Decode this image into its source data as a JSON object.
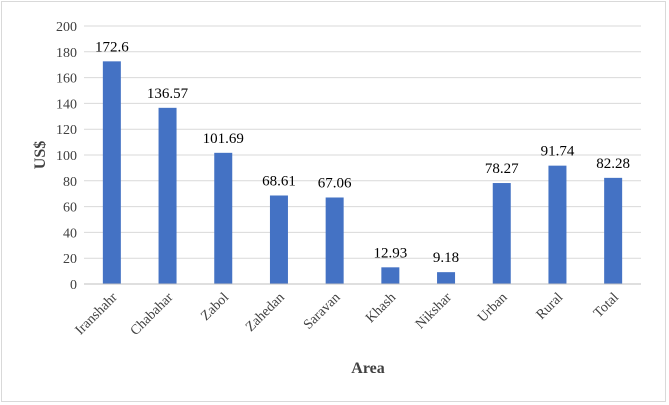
{
  "chart_data": {
    "type": "bar",
    "title": "",
    "xlabel": "Area",
    "ylabel": "US$",
    "ylim": [
      0,
      200
    ],
    "ytick_step": 20,
    "grid": true,
    "legend": "none",
    "bar_color": "#4472c4",
    "categories": [
      "Iranshahr",
      "Chabahar",
      "Zabol",
      "Zahedan",
      "Saravan",
      "Khash",
      "Nikshar",
      "Urban",
      "Rural",
      "Total"
    ],
    "values": [
      172.6,
      136.57,
      101.69,
      68.61,
      67.06,
      12.93,
      9.18,
      78.27,
      91.74,
      82.28
    ],
    "data_labels": [
      "172.6",
      "136.57",
      "101.69",
      "68.61",
      "67.06",
      "12.93",
      "9.18",
      "78.27",
      "91.74",
      "82.28"
    ]
  }
}
